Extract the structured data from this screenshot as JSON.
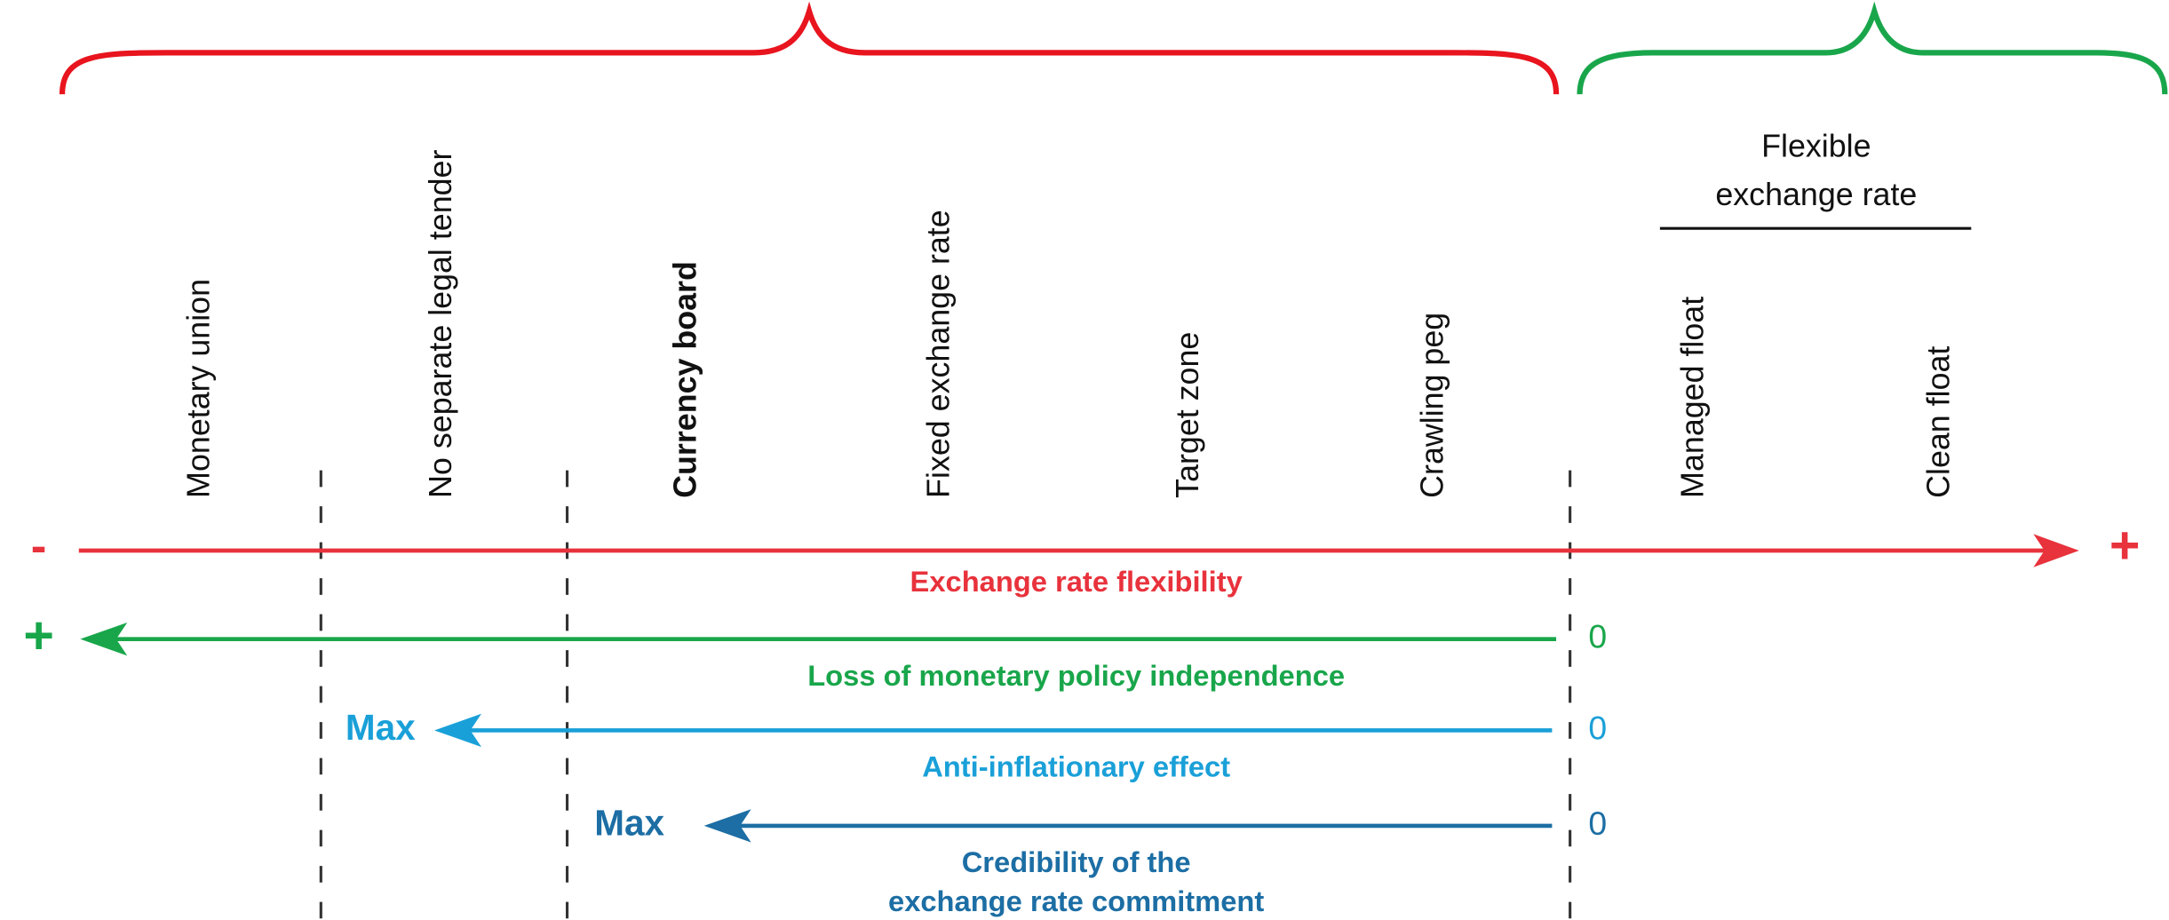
{
  "regimes": [
    "Monetary union",
    "No separate legal tender",
    "Currency board",
    "Fixed exchange rate",
    "Target zone",
    "Crawling peg",
    "Managed float",
    "Clean float"
  ],
  "flexible_header": [
    "Flexible",
    "exchange rate"
  ],
  "axes": [
    {
      "label_lines": [
        "Exchange rate flexibility"
      ],
      "start": "-",
      "end": "+"
    },
    {
      "label_lines": [
        "Loss of monetary policy independence"
      ],
      "start": "0",
      "end": "+"
    },
    {
      "label_lines": [
        "Anti-inflationary effect"
      ],
      "start": "0",
      "end": "Max"
    },
    {
      "label_lines": [
        "Credibility of the",
        "exchange rate commitment"
      ],
      "start": "0",
      "end": "Max"
    }
  ]
}
